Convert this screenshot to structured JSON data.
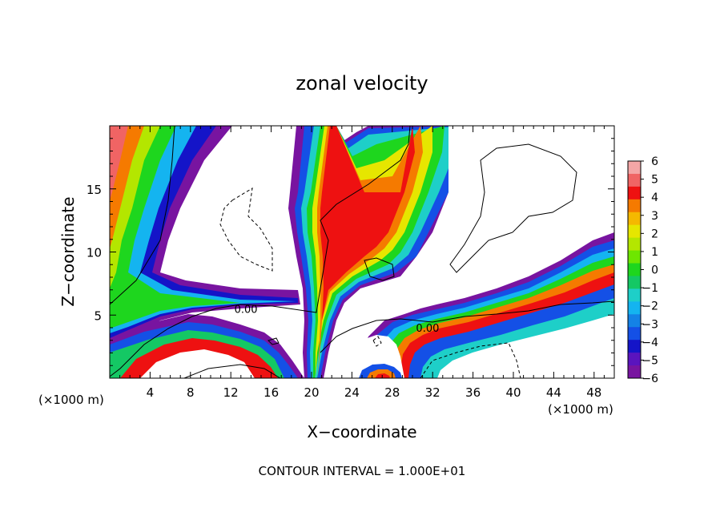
{
  "chart_data": {
    "type": "heatmap",
    "title": "zonal velocity",
    "xlabel": "X−coordinate",
    "ylabel": "Z−coordinate",
    "x_unit_left": "(×1000 m)",
    "x_unit_right": "(×1000 m)",
    "footer": "CONTOUR INTERVAL = 1.000E+01",
    "xlim": [
      0,
      50
    ],
    "ylim": [
      0,
      20
    ],
    "x_ticks": [
      4,
      8,
      12,
      16,
      20,
      24,
      28,
      32,
      36,
      40,
      44,
      48
    ],
    "x_tick_labels": [
      "4",
      "8",
      "12",
      "16",
      "20",
      "24",
      "28",
      "32",
      "36",
      "40",
      "44",
      "48"
    ],
    "y_ticks": [
      5,
      10,
      15
    ],
    "y_tick_labels": [
      "5",
      "10",
      "15"
    ],
    "colorbar": {
      "ticks": [
        6,
        5,
        4,
        3,
        2,
        1,
        0,
        -1,
        -2,
        -3,
        -4,
        -5,
        -6
      ],
      "tick_labels": [
        "6",
        "5",
        "4",
        "3",
        "2",
        "1",
        "0",
        "−1",
        "−2",
        "−3",
        "−4",
        "−5",
        "−6"
      ],
      "colors": [
        "#f4a6a6",
        "#f06464",
        "#ee1111",
        "#f57a00",
        "#f5b800",
        "#e6e600",
        "#b4e600",
        "#6ee600",
        "#1ed61e",
        "#14c864",
        "#1ecfc8",
        "#14b4f0",
        "#1482e6",
        "#1450e6",
        "#1414c8",
        "#5a14be",
        "#7814a0"
      ]
    },
    "contour_labels": [
      {
        "text": "0.00",
        "x": 13.5,
        "y": 5.5
      },
      {
        "text": "0.00",
        "x": 31.5,
        "y": 4.0
      }
    ]
  }
}
